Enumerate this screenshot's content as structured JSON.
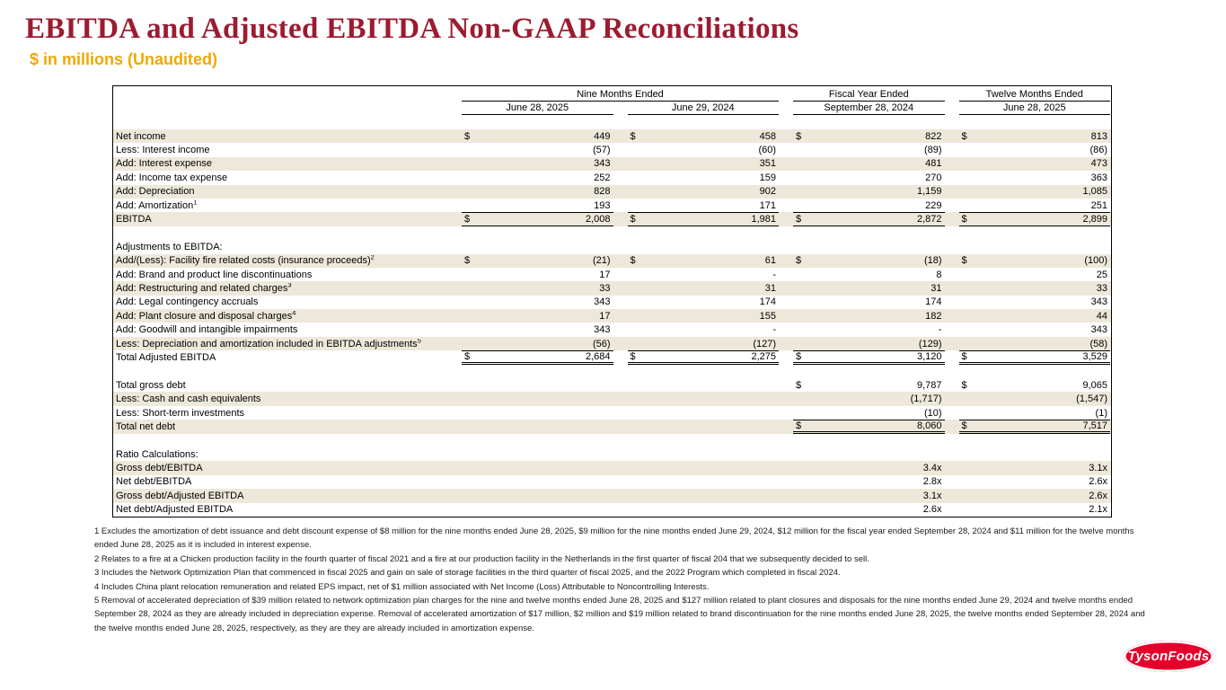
{
  "slide": {
    "title": "EBITDA and Adjusted EBITDA Non-GAAP Reconciliations",
    "subtitle": "$ in millions (Unaudited)"
  },
  "colors": {
    "title_maroon": "#9B1C31",
    "subtitle_gold": "#EEA904",
    "row_stripe": "#EDE8DA",
    "logo_red": "#E4002B"
  },
  "table": {
    "col_groups": [
      {
        "label": "Nine Months Ended",
        "span": 2
      },
      {
        "label": "Fiscal Year Ended",
        "span": 1
      },
      {
        "label": "Twelve Months Ended",
        "span": 1
      }
    ],
    "col_headers": [
      "June 28, 2025",
      "June 29, 2024",
      "September 28, 2024",
      "June 28, 2025"
    ],
    "rows": [
      {
        "kind": "data",
        "shade": true,
        "label": "Net income",
        "cells": [
          {
            "d": "$",
            "v": "449"
          },
          {
            "d": "$",
            "v": "458"
          },
          {
            "d": "$",
            "v": "822"
          },
          {
            "d": "$",
            "v": "813"
          }
        ]
      },
      {
        "kind": "data",
        "shade": false,
        "label": "Less: Interest income",
        "cells": [
          {
            "v": "(57)"
          },
          {
            "v": "(60)"
          },
          {
            "v": "(89)"
          },
          {
            "v": "(86)"
          }
        ]
      },
      {
        "kind": "data",
        "shade": true,
        "label": "Add: Interest expense",
        "cells": [
          {
            "v": "343"
          },
          {
            "v": "351"
          },
          {
            "v": "481"
          },
          {
            "v": "473"
          }
        ]
      },
      {
        "kind": "data",
        "shade": false,
        "label": "Add: Income tax expense",
        "cells": [
          {
            "v": "252"
          },
          {
            "v": "159"
          },
          {
            "v": "270"
          },
          {
            "v": "363"
          }
        ]
      },
      {
        "kind": "data",
        "shade": true,
        "label": "Add: Depreciation",
        "cells": [
          {
            "v": "828"
          },
          {
            "v": "902"
          },
          {
            "v": "1,159"
          },
          {
            "v": "1,085"
          }
        ]
      },
      {
        "kind": "data",
        "shade": false,
        "label": "Add: Amortization",
        "sup": "1",
        "cells": [
          {
            "v": "193"
          },
          {
            "v": "171"
          },
          {
            "v": "229"
          },
          {
            "v": "251"
          }
        ]
      },
      {
        "kind": "data",
        "shade": true,
        "label": "EBITDA",
        "rule": "sub",
        "cells": [
          {
            "d": "$",
            "v": "2,008"
          },
          {
            "d": "$",
            "v": "1,981"
          },
          {
            "d": "$",
            "v": "2,872"
          },
          {
            "d": "$",
            "v": "2,899"
          }
        ]
      },
      {
        "kind": "blank"
      },
      {
        "kind": "section",
        "shade": false,
        "label": "Adjustments to EBITDA:"
      },
      {
        "kind": "data",
        "shade": true,
        "label": "Add/(Less): Facility fire related costs (insurance proceeds)",
        "sup": "2",
        "cells": [
          {
            "d": "$",
            "v": "(21)"
          },
          {
            "d": "$",
            "v": "61"
          },
          {
            "d": "$",
            "v": "(18)"
          },
          {
            "d": "$",
            "v": "(100)"
          }
        ]
      },
      {
        "kind": "data",
        "shade": false,
        "label": "Add: Brand and product line discontinuations",
        "cells": [
          {
            "v": "17"
          },
          {
            "v": "-"
          },
          {
            "v": "8"
          },
          {
            "v": "25"
          }
        ]
      },
      {
        "kind": "data",
        "shade": true,
        "label": "Add: Restructuring and related charges",
        "sup": "3",
        "cells": [
          {
            "v": "33"
          },
          {
            "v": "31"
          },
          {
            "v": "31"
          },
          {
            "v": "33"
          }
        ]
      },
      {
        "kind": "data",
        "shade": false,
        "label": "Add: Legal contingency accruals",
        "cells": [
          {
            "v": "343"
          },
          {
            "v": "174"
          },
          {
            "v": "174"
          },
          {
            "v": "343"
          }
        ]
      },
      {
        "kind": "data",
        "shade": true,
        "label": "Add: Plant closure and disposal charges",
        "sup": "4",
        "cells": [
          {
            "v": "17"
          },
          {
            "v": "155"
          },
          {
            "v": "182"
          },
          {
            "v": "44"
          }
        ]
      },
      {
        "kind": "data",
        "shade": false,
        "label": "Add: Goodwill and intangible impairments",
        "cells": [
          {
            "v": "343"
          },
          {
            "v": "-"
          },
          {
            "v": "-"
          },
          {
            "v": "343"
          }
        ]
      },
      {
        "kind": "data",
        "shade": true,
        "label": "Less: Depreciation and amortization included in EBITDA adjustments",
        "sup": "5",
        "cells": [
          {
            "v": "(56)"
          },
          {
            "v": "(127)"
          },
          {
            "v": "(129)"
          },
          {
            "v": "(58)"
          }
        ]
      },
      {
        "kind": "data",
        "shade": false,
        "label": "Total Adjusted EBITDA",
        "rule": "tot",
        "cells": [
          {
            "d": "$",
            "v": "2,684"
          },
          {
            "d": "$",
            "v": "2,275"
          },
          {
            "d": "$",
            "v": "3,120"
          },
          {
            "d": "$",
            "v": "3,529"
          }
        ]
      },
      {
        "kind": "blank"
      },
      {
        "kind": "data",
        "shade": false,
        "label": "Total gross debt",
        "cells": [
          {},
          {},
          {
            "d": "$",
            "v": "9,787"
          },
          {
            "d": "$",
            "v": "9,065"
          }
        ]
      },
      {
        "kind": "data",
        "shade": true,
        "label": "Less: Cash and cash equivalents",
        "cells": [
          {},
          {},
          {
            "v": "(1,717)"
          },
          {
            "v": "(1,547)"
          }
        ]
      },
      {
        "kind": "data",
        "shade": false,
        "label": "Less: Short-term investments",
        "cells": [
          {},
          {},
          {
            "v": "(10)"
          },
          {
            "v": "(1)"
          }
        ]
      },
      {
        "kind": "data",
        "shade": true,
        "label": "Total net debt",
        "rule": "tot",
        "cells": [
          {},
          {},
          {
            "d": "$",
            "v": "8,060"
          },
          {
            "d": "$",
            "v": "7,517"
          }
        ]
      },
      {
        "kind": "blank"
      },
      {
        "kind": "section",
        "shade": false,
        "label": "Ratio Calculations:"
      },
      {
        "kind": "data",
        "shade": true,
        "label": "Gross debt/EBITDA",
        "cells": [
          {},
          {},
          {
            "v": "3.4x"
          },
          {
            "v": "3.1x"
          }
        ]
      },
      {
        "kind": "data",
        "shade": false,
        "label": "Net debt/EBITDA",
        "cells": [
          {},
          {},
          {
            "v": "2.8x"
          },
          {
            "v": "2.6x"
          }
        ]
      },
      {
        "kind": "data",
        "shade": true,
        "label": "Gross debt/Adjusted EBITDA",
        "cells": [
          {},
          {},
          {
            "v": "3.1x"
          },
          {
            "v": "2.6x"
          }
        ]
      },
      {
        "kind": "data",
        "shade": false,
        "label": "Net debt/Adjusted EBITDA",
        "cells": [
          {},
          {},
          {
            "v": "2.6x"
          },
          {
            "v": "2.1x"
          }
        ]
      }
    ]
  },
  "footnotes": [
    "1 Excludes the amortization of debt issuance and debt discount expense of $8 million for the nine months ended June 28, 2025, $9 million for the nine months ended June 29, 2024, $12 million for the fiscal year ended September 28, 2024 and $11 million for the twelve months ended June 28, 2025 as it is included in interest expense.",
    "2 Relates to a fire at a Chicken production facility in the fourth quarter of fiscal 2021 and a fire at our production facility in the Netherlands in the first quarter of fiscal 204 that we subsequently decided to sell.",
    "3 Includes the Network Optimization Plan that commenced in fiscal 2025 and gain on sale of storage facilities in the third quarter of fiscal 2025, and the 2022 Program which completed in fiscal 2024.",
    "4 Includes China plant relocation remuneration and related EPS impact, net of $1 million associated with Net Income (Loss) Attributable to Noncontrolling Interests.",
    "5 Removal of accelerated depreciation of $39 million related to network optimization plan charges for the nine and twelve months ended June 28, 2025 and $127 million related to plant closures and disposals for the nine months ended June 29, 2024 and twelve months ended September 28, 2024 as they are already included in depreciation expense. Removal of accelerated amortization of $17 million, $2 million and $19 million related to brand discontinuation for the nine months ended June 28, 2025, the twelve months ended September 28, 2024 and the twelve months ended June 28, 2025, respectively, as they are they are already included in amortization expense."
  ],
  "logo": {
    "text": "TysonFoods"
  }
}
